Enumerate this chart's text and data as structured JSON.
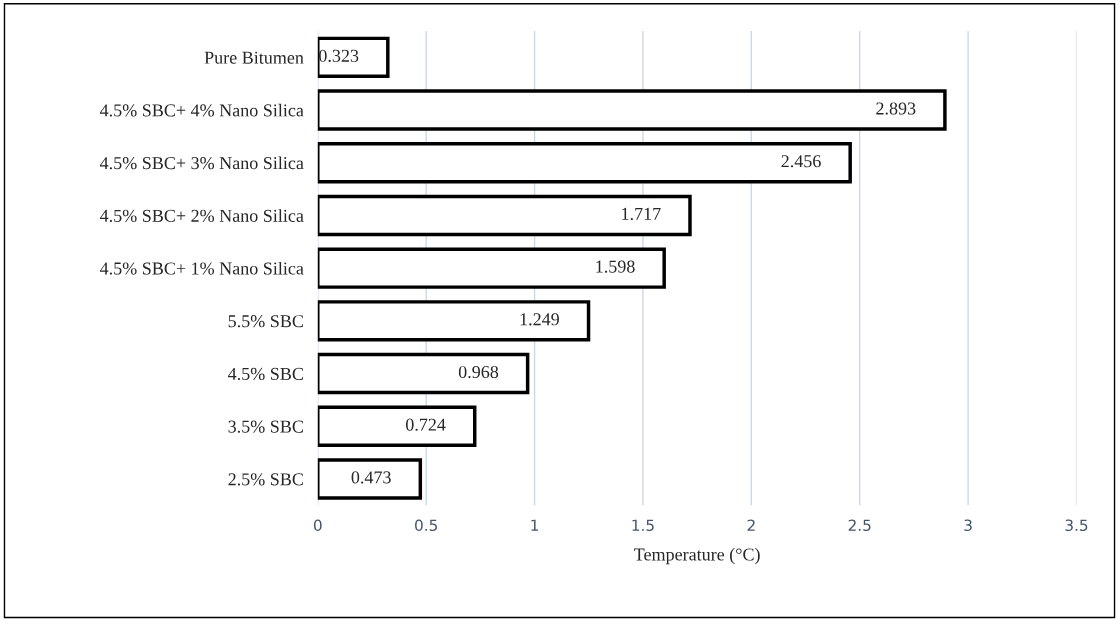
{
  "chart_data": {
    "type": "bar",
    "orientation": "horizontal",
    "xlabel": "Temperature (°C)",
    "categories": [
      "Pure Bitumen",
      "4.5% SBC+ 4% Nano Silica",
      "4.5% SBC+ 3% Nano Silica",
      "4.5% SBC+ 2% Nano Silica",
      "4.5% SBC+ 1% Nano Silica",
      "5.5% SBC",
      "4.5% SBC",
      "3.5% SBC",
      "2.5% SBC"
    ],
    "values": [
      0.323,
      2.893,
      2.456,
      1.717,
      1.598,
      1.249,
      0.968,
      0.724,
      0.473
    ],
    "color": "#ffffff",
    "xlim": [
      0,
      3.5
    ],
    "xticks": [
      0,
      0.5,
      1,
      1.5,
      2,
      2.5,
      3,
      3.5
    ],
    "grid": "x",
    "data_labels": true,
    "legend": false
  }
}
